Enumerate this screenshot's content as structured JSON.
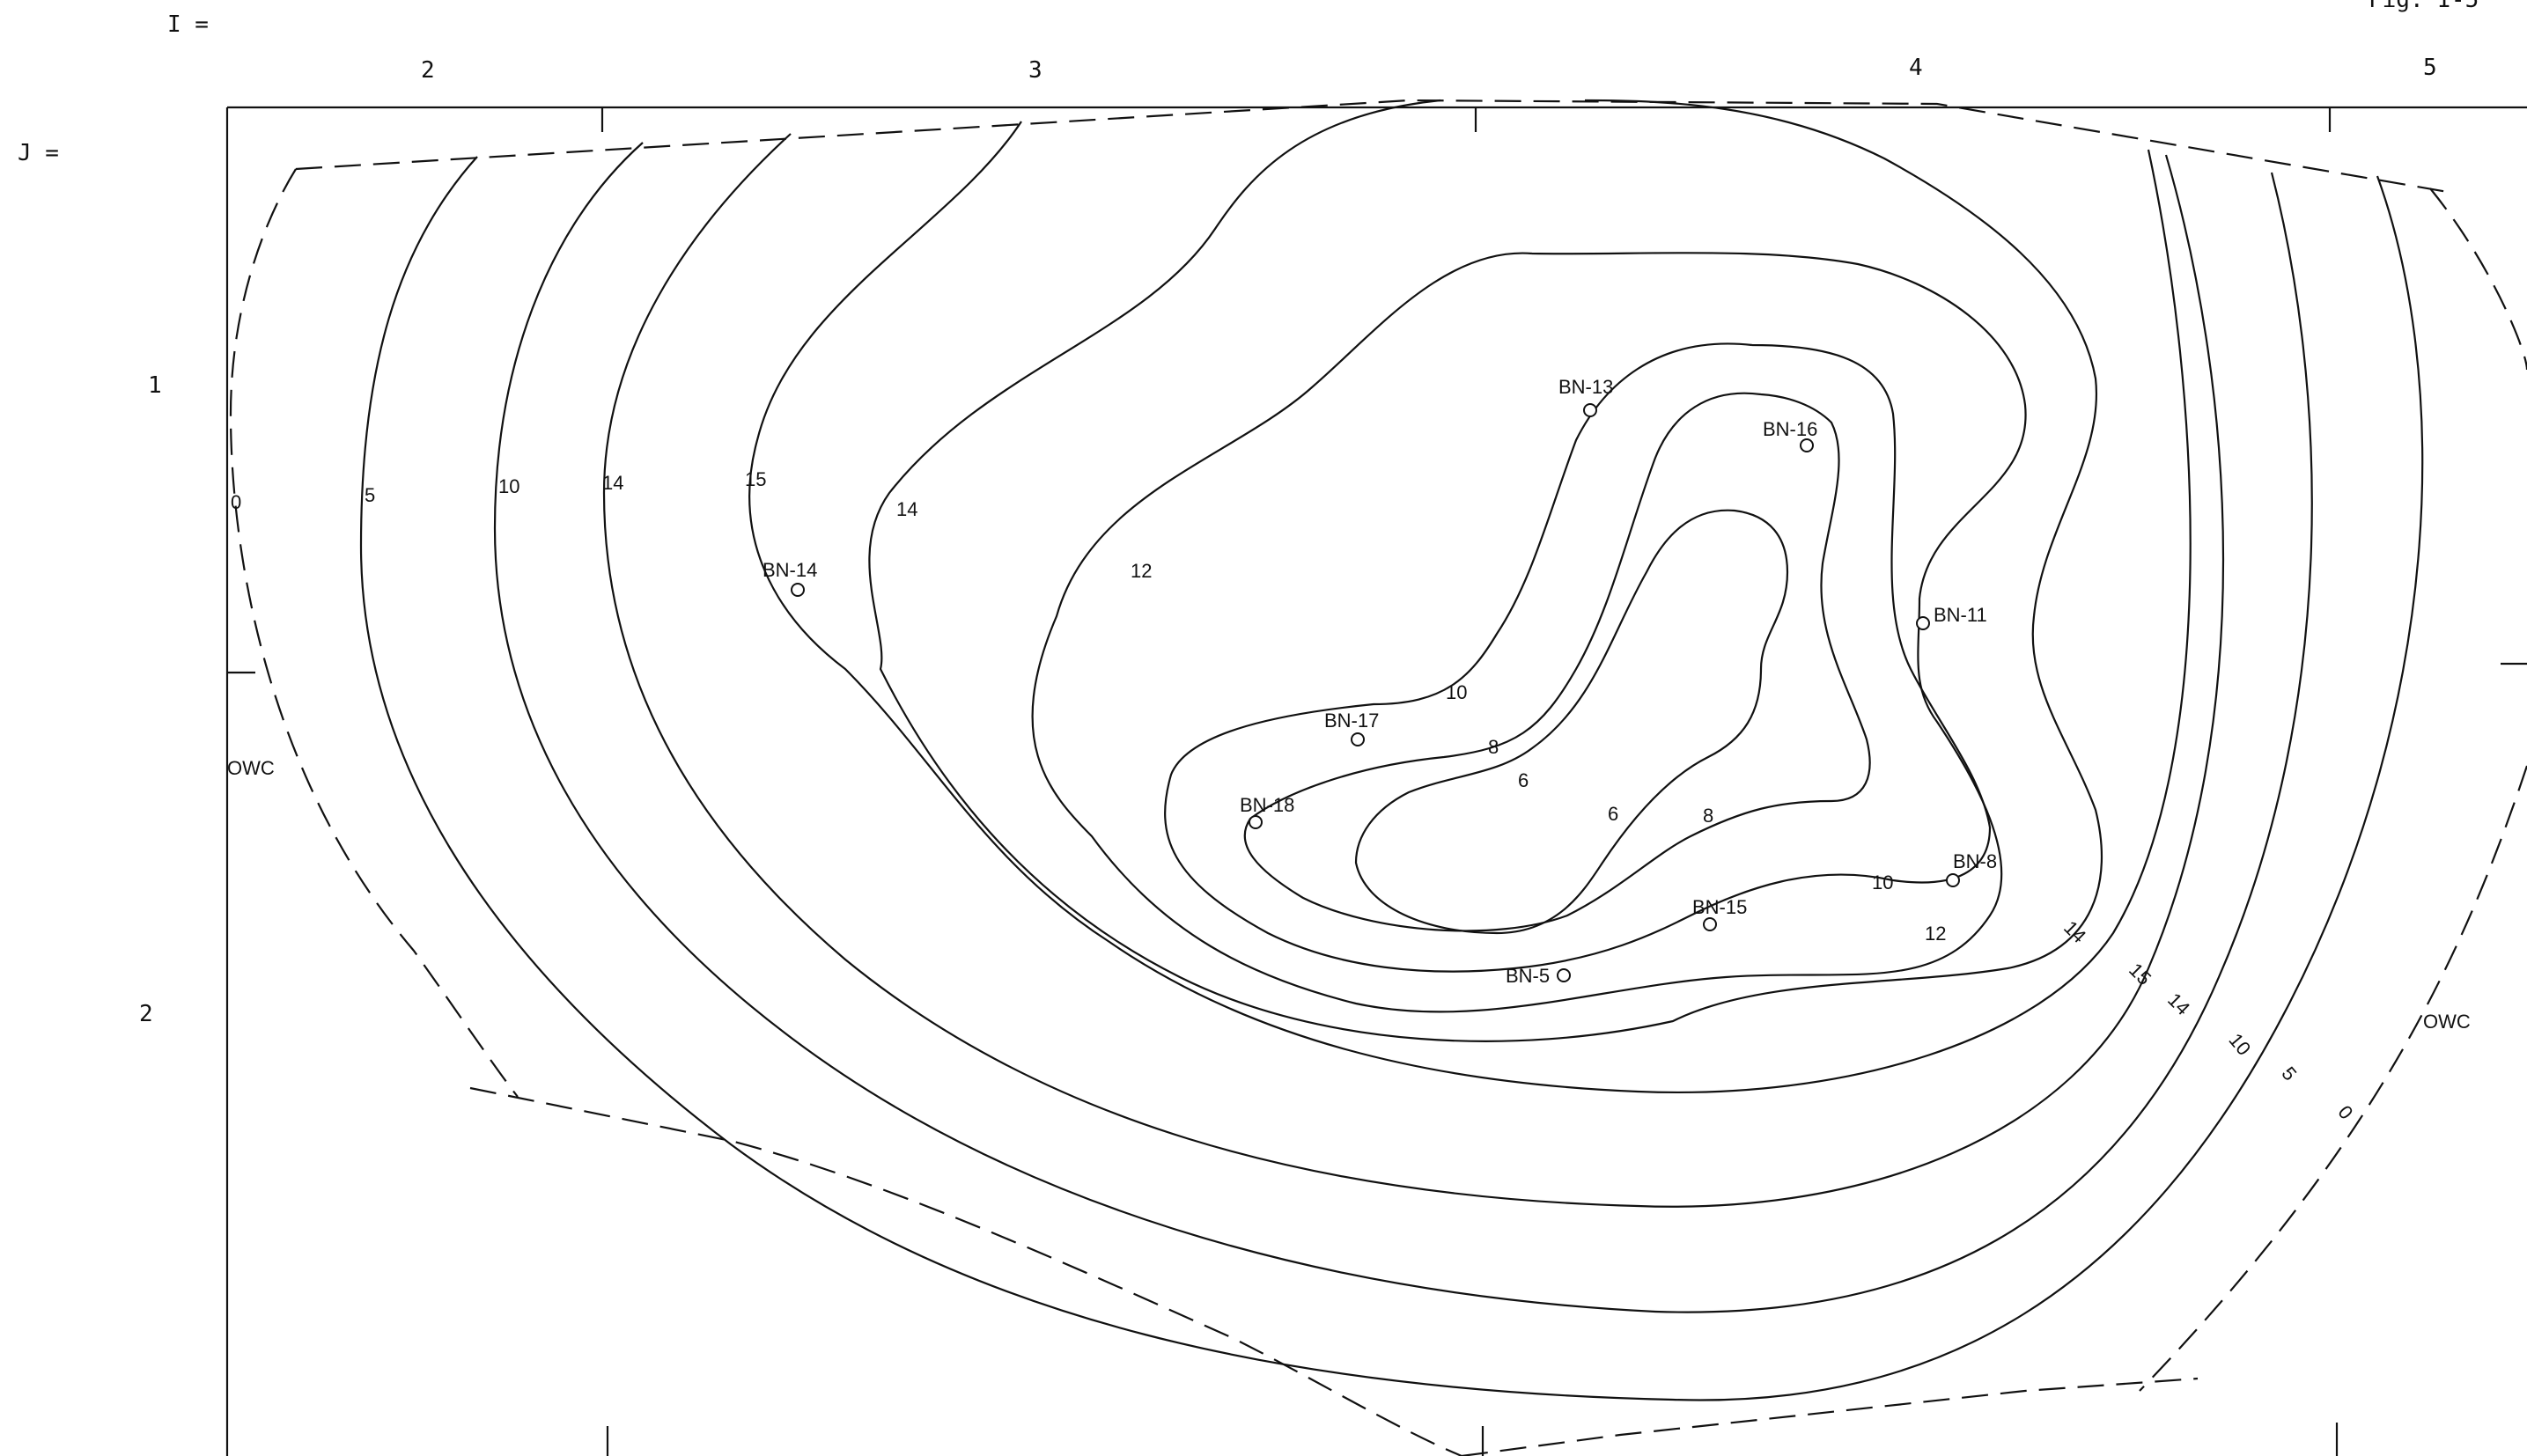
{
  "header": {
    "index_label_left": "I =",
    "fig_label": "Fig. I-5"
  },
  "axis": {
    "j_label": "J =",
    "top_indices": [
      "2",
      "3",
      "4",
      "5"
    ],
    "left_indices": [
      "1",
      "2"
    ]
  },
  "boundary_labels": {
    "owc_left": "OWC",
    "owc_right": "OWC"
  },
  "wells": [
    {
      "name": "BN-13"
    },
    {
      "name": "BN-16"
    },
    {
      "name": "BN-14"
    },
    {
      "name": "BN-11"
    },
    {
      "name": "BN-17"
    },
    {
      "name": "BN-18"
    },
    {
      "name": "BN-8"
    },
    {
      "name": "BN-15"
    },
    {
      "name": "BN-5"
    }
  ],
  "contour_labels": {
    "left": [
      "0",
      "5",
      "10",
      "14",
      "15",
      "14",
      "12",
      "10",
      "8",
      "6",
      "6",
      "8"
    ],
    "right": [
      "10",
      "12",
      "14",
      "15",
      "14",
      "10",
      "5",
      "0"
    ]
  }
}
